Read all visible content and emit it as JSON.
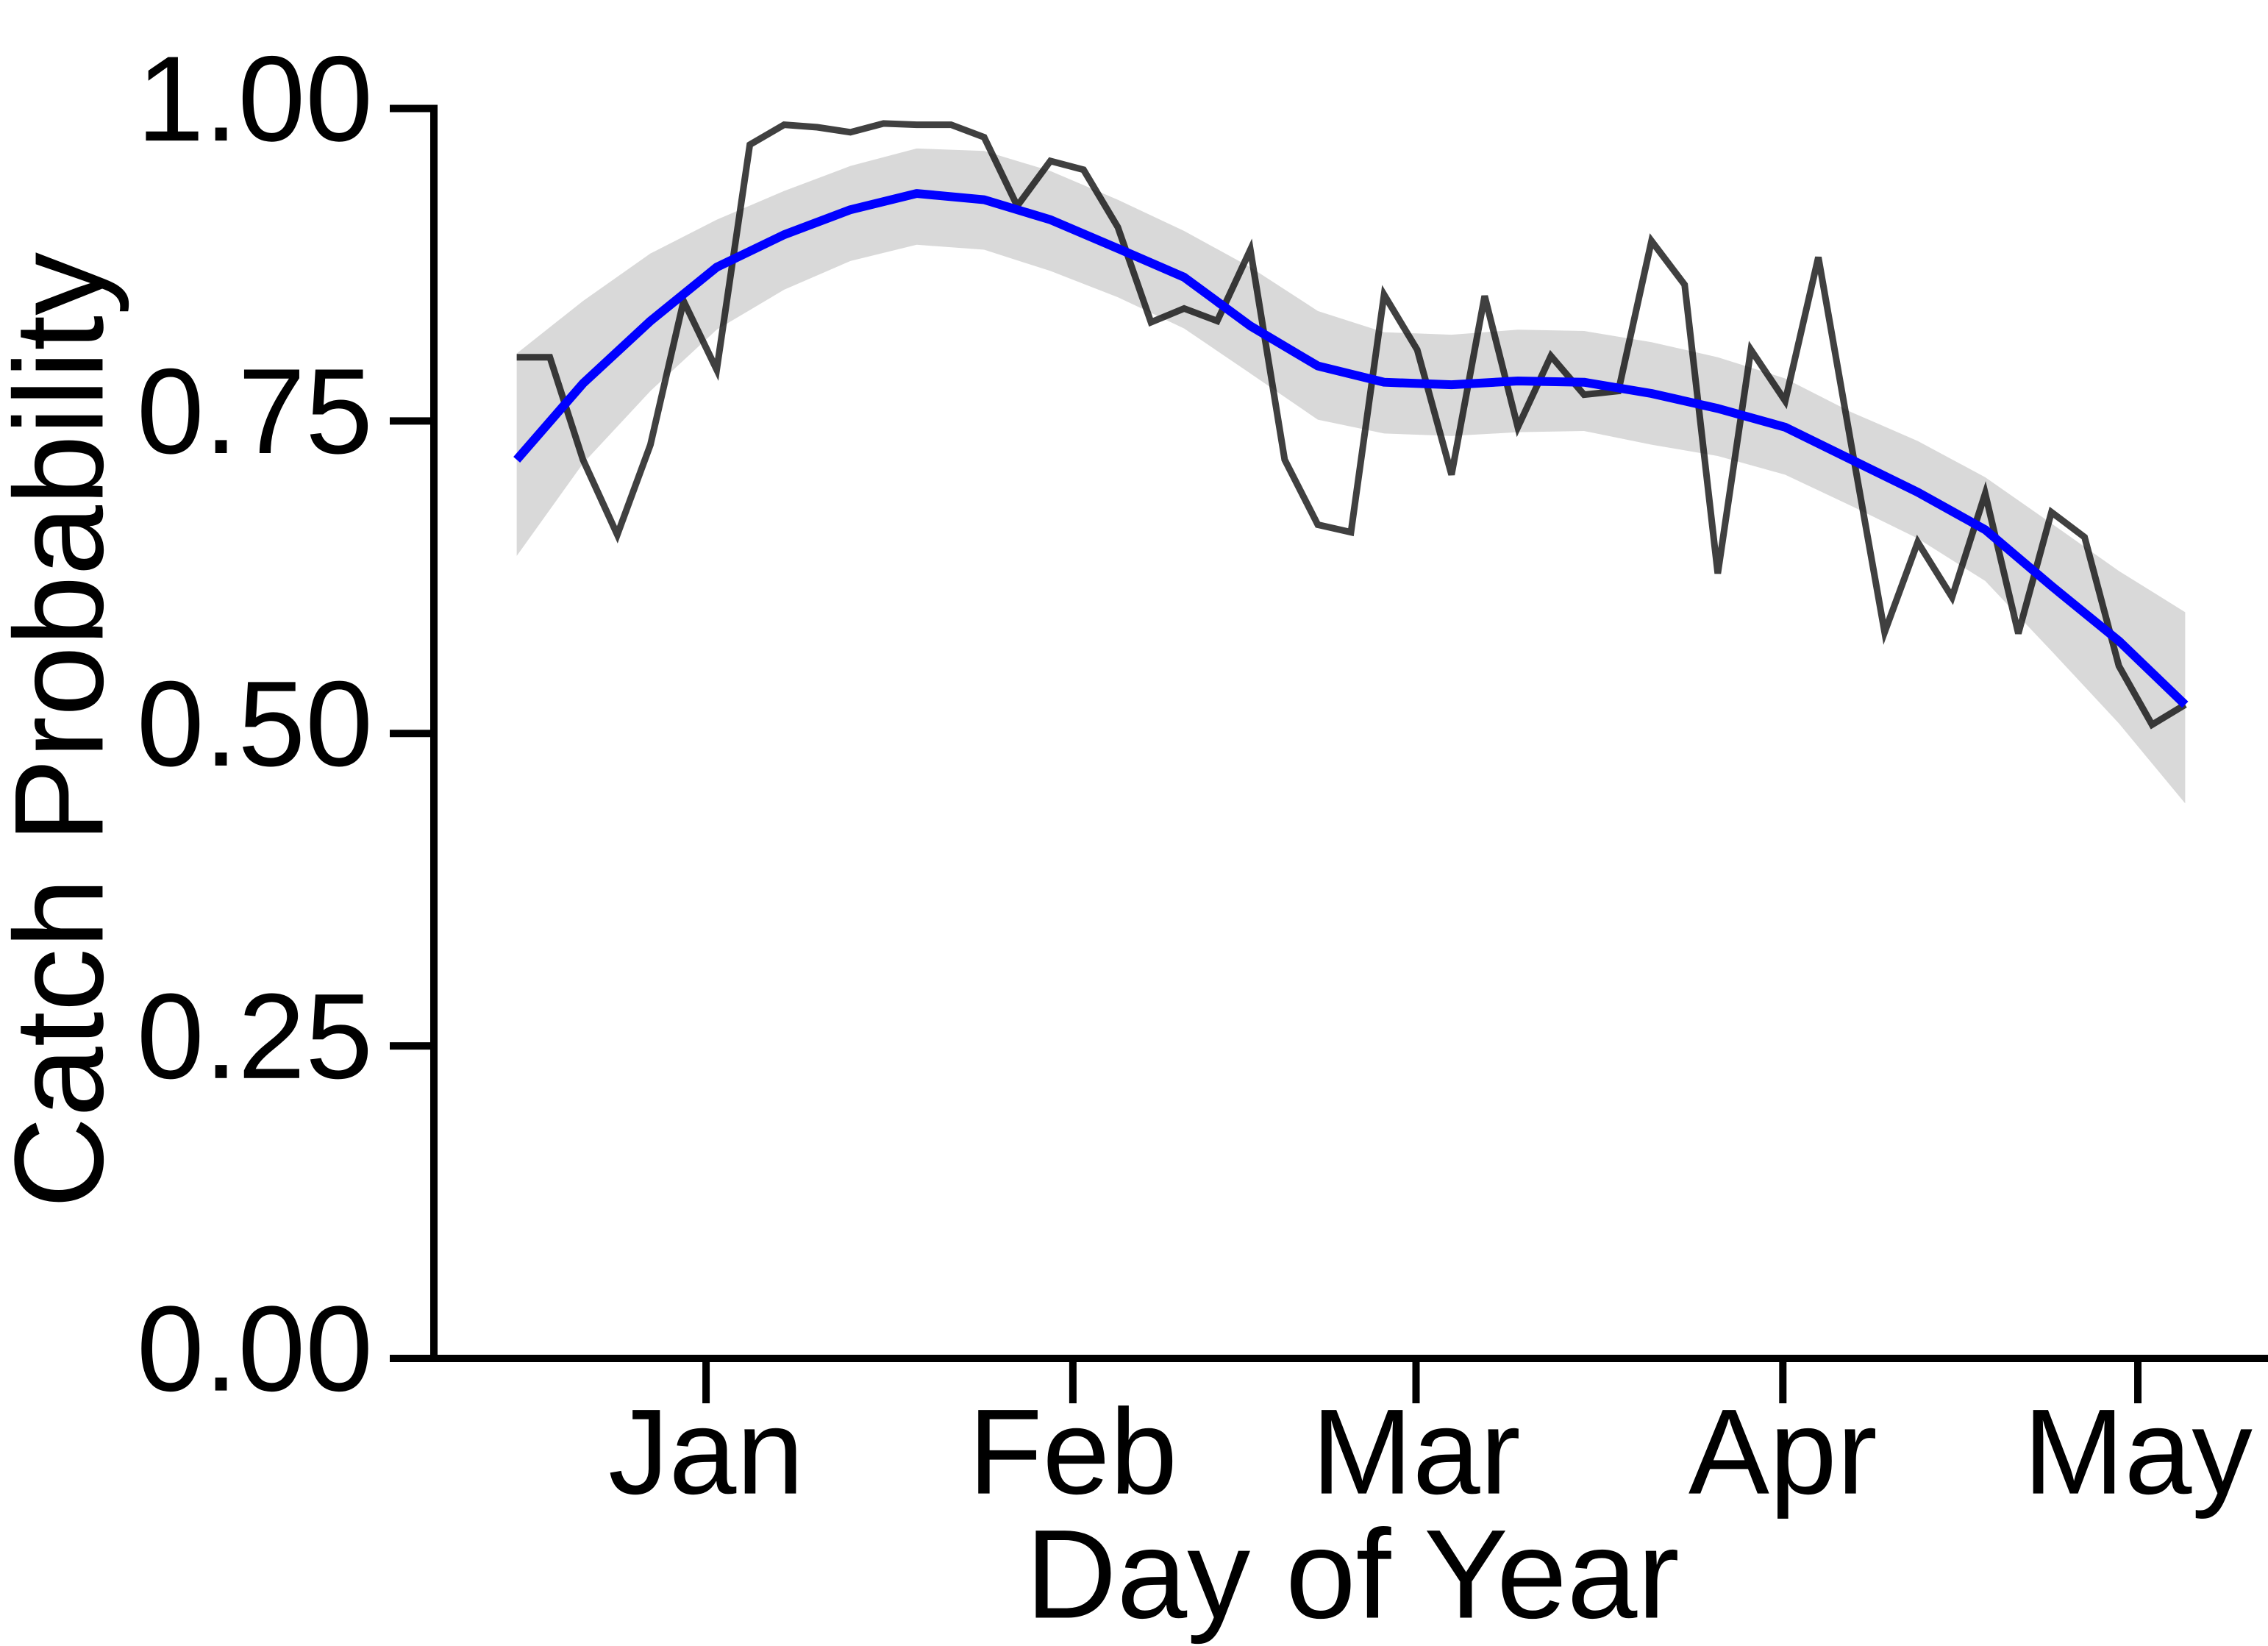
{
  "chart_data": {
    "type": "line",
    "xlabel": "Day of Year",
    "ylabel": "Catch Probability",
    "xlim": [
      -22,
      133
    ],
    "ylim": [
      0,
      1
    ],
    "xticks": [
      {
        "value": 1,
        "label": "Jan"
      },
      {
        "value": 32,
        "label": "Feb"
      },
      {
        "value": 61,
        "label": "Mar"
      },
      {
        "value": 92,
        "label": "Apr"
      },
      {
        "value": 122,
        "label": "May"
      }
    ],
    "yticks": [
      {
        "value": 0,
        "label": "0.00"
      },
      {
        "value": 0.25,
        "label": "0.25"
      },
      {
        "value": 0.5,
        "label": "0.50"
      },
      {
        "value": 0.75,
        "label": "0.75"
      },
      {
        "value": 1,
        "label": "1.00"
      }
    ],
    "x": [
      -15,
      -12.2,
      -9.4,
      -6.5,
      -3.7,
      -0.9,
      1.9,
      4.7,
      7.6,
      10.4,
      13.2,
      16,
      18.8,
      21.7,
      24.5,
      27.3,
      30.1,
      32.9,
      35.8,
      38.6,
      41.4,
      44.2,
      47,
      49.9,
      52.7,
      55.5,
      58.3,
      61.1,
      64,
      66.8,
      69.6,
      72.4,
      75.2,
      78.1,
      80.9,
      83.7,
      86.5,
      89.3,
      92.2,
      95,
      97.8,
      100.6,
      103.4,
      106.3,
      109.1,
      111.9,
      114.7,
      117.5,
      120.4,
      123.2,
      126
    ],
    "series": [
      {
        "color": "#000000",
        "values": [
          0.801,
          0.801,
          0.719,
          0.659,
          0.731,
          0.846,
          0.791,
          0.971,
          0.987,
          0.985,
          0.981,
          0.988,
          0.987,
          0.987,
          0.977,
          0.922,
          0.958,
          0.951,
          0.905,
          0.829,
          0.84,
          0.83,
          0.887,
          0.719,
          0.667,
          0.661,
          0.851,
          0.807,
          0.707,
          0.85,
          0.745,
          0.802,
          0.771,
          0.774,
          0.894,
          0.859,
          0.628,
          0.807,
          0.766,
          0.881,
          0.73,
          0.581,
          0.653,
          0.609,
          0.692,
          0.58,
          0.677,
          0.657,
          0.554,
          0.507,
          0.523
        ]
      }
    ],
    "fit": {
      "color": "#0000ff",
      "band_color": "#d9d9d9",
      "x": [
        -15,
        -9.4,
        -3.7,
        1.9,
        7.6,
        13.2,
        18.8,
        24.5,
        30.1,
        35.8,
        41.4,
        47,
        52.7,
        58.3,
        64,
        69.6,
        75.2,
        80.9,
        86.5,
        92.2,
        97.8,
        103.4,
        109.1,
        114.7,
        120.4,
        126
      ],
      "values": [
        0.719,
        0.78,
        0.83,
        0.873,
        0.899,
        0.919,
        0.932,
        0.927,
        0.911,
        0.888,
        0.865,
        0.826,
        0.794,
        0.781,
        0.779,
        0.782,
        0.781,
        0.772,
        0.76,
        0.745,
        0.719,
        0.693,
        0.663,
        0.618,
        0.574,
        0.523
      ],
      "upper": [
        0.804,
        0.846,
        0.884,
        0.911,
        0.934,
        0.954,
        0.968,
        0.966,
        0.95,
        0.927,
        0.902,
        0.873,
        0.838,
        0.821,
        0.819,
        0.823,
        0.822,
        0.813,
        0.801,
        0.784,
        0.757,
        0.734,
        0.705,
        0.668,
        0.63,
        0.597
      ],
      "lower": [
        0.642,
        0.716,
        0.774,
        0.823,
        0.855,
        0.878,
        0.891,
        0.887,
        0.87,
        0.849,
        0.824,
        0.788,
        0.751,
        0.74,
        0.738,
        0.741,
        0.742,
        0.731,
        0.722,
        0.707,
        0.682,
        0.656,
        0.622,
        0.566,
        0.508,
        0.444
      ]
    }
  }
}
